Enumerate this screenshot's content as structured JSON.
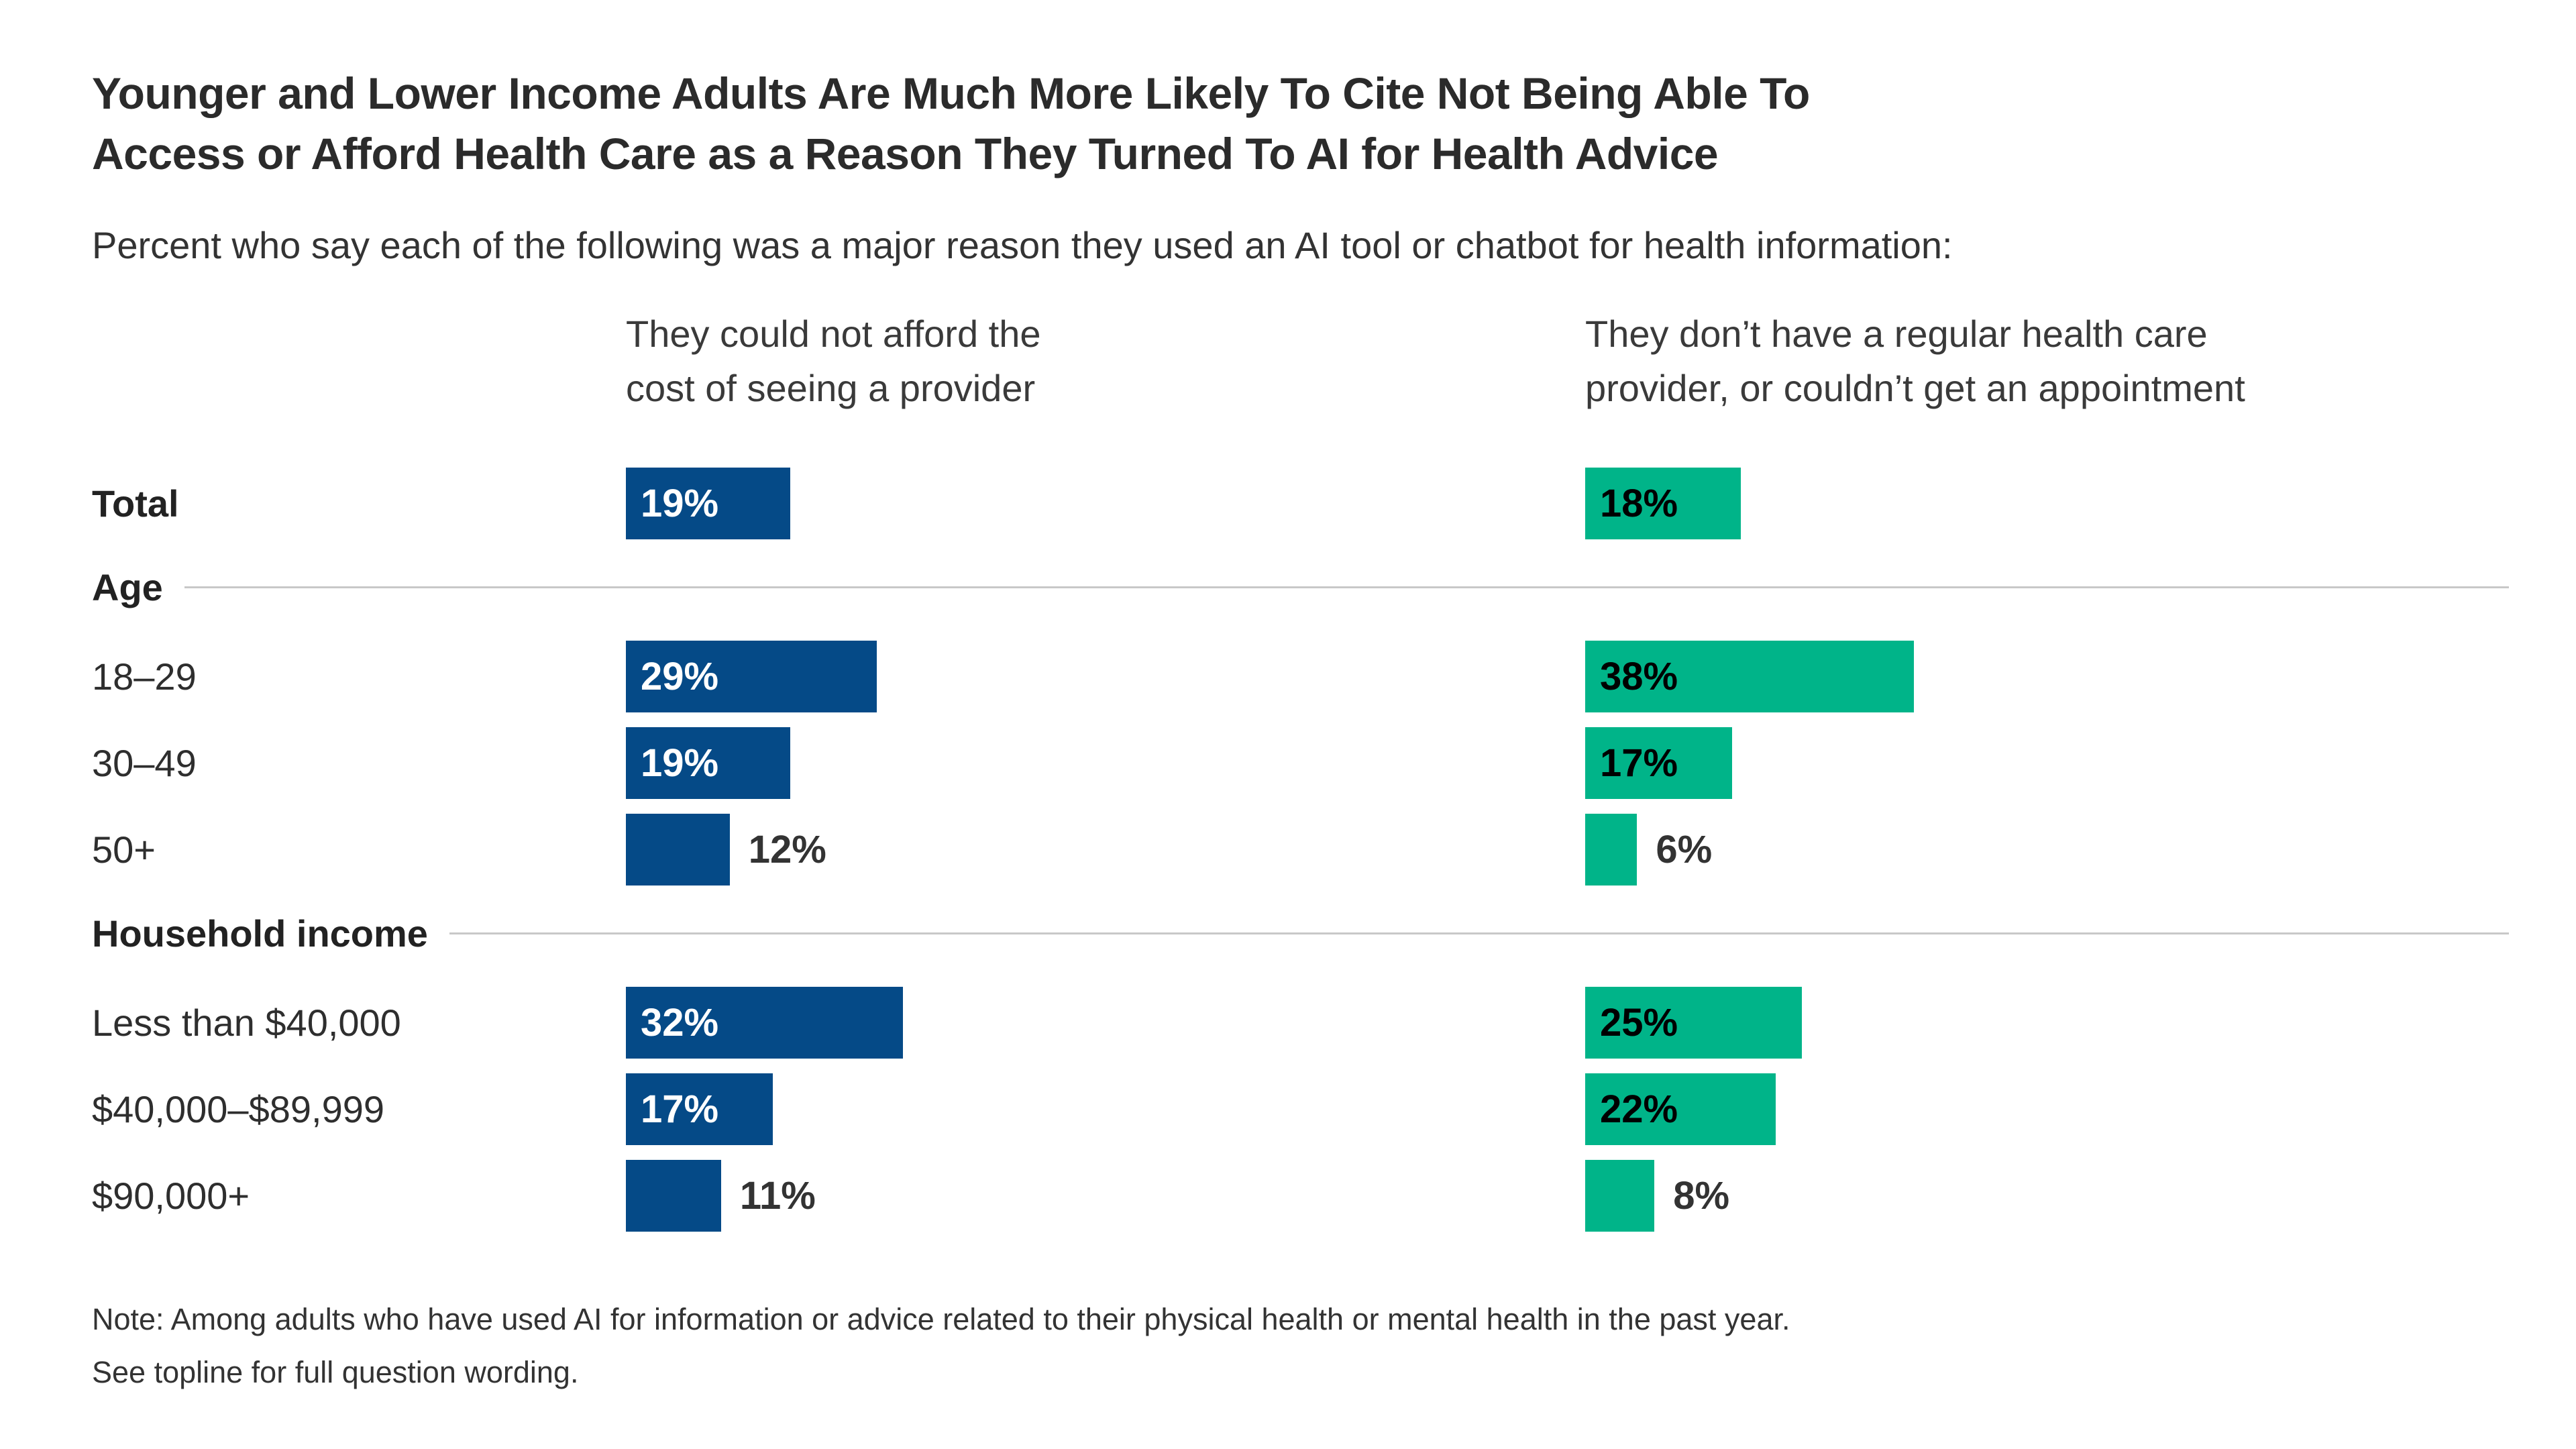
{
  "title_lines": [
    "Younger and Lower Income Adults Are Much More Likely To Cite Not Being Able To",
    "Access or Afford Health Care as a Reason They Turned To AI for Health Advice"
  ],
  "subtitle": "Percent who say each of the following was a major reason they used an AI tool or chatbot for health information:",
  "colors": {
    "blue": "#054a87",
    "green": "#00b489",
    "divider": "#c8c8c8",
    "text": "#333333"
  },
  "columns": [
    {
      "id": "afford",
      "header_lines": [
        "They could not afford the",
        "cost of seeing a provider"
      ],
      "color": "#054a87"
    },
    {
      "id": "provider",
      "header_lines": [
        "They don’t have a regular health care",
        "provider, or couldn’t get an appointment"
      ],
      "color": "#00b489"
    }
  ],
  "chart_data": {
    "type": "bar",
    "orientation": "horizontal",
    "unit": "percent",
    "title": "Younger and Lower Income Adults Are Much More Likely To Cite Not Being Able To Access or Afford Health Care as a Reason They Turned To AI for Health Advice",
    "subtitle": "Percent who say each of the following was a major reason they used an AI tool or chatbot for health information:",
    "group_headers": [
      "Total",
      "Age",
      "Household income"
    ],
    "categories": [
      "Total",
      "18–29",
      "30–49",
      "50+",
      "Less than $40,000",
      "$40,000–$89,999",
      "$90,000+"
    ],
    "series": [
      {
        "name": "They could not afford the cost of seeing a provider",
        "color": "#054a87",
        "values": [
          19,
          29,
          19,
          12,
          32,
          17,
          11
        ]
      },
      {
        "name": "They don’t have a regular health care provider, or couldn’t get an appointment",
        "color": "#00b489",
        "values": [
          18,
          38,
          17,
          6,
          25,
          22,
          8
        ]
      }
    ],
    "value_labels_shown": true,
    "xlim": [
      0,
      100
    ],
    "grid": false,
    "legend_position": "column-headers"
  },
  "rows": [
    {
      "type": "bar",
      "label": "Total",
      "bold": true,
      "left": {
        "value": 19,
        "display": "19%",
        "label_position": "inside"
      },
      "right": {
        "value": 18,
        "display": "18%",
        "label_position": "inside"
      }
    },
    {
      "type": "section",
      "label": "Age"
    },
    {
      "type": "bar",
      "label": "18–29",
      "left": {
        "value": 29,
        "display": "29%",
        "label_position": "inside"
      },
      "right": {
        "value": 38,
        "display": "38%",
        "label_position": "inside"
      }
    },
    {
      "type": "bar",
      "label": "30–49",
      "left": {
        "value": 19,
        "display": "19%",
        "label_position": "inside"
      },
      "right": {
        "value": 17,
        "display": "17%",
        "label_position": "inside"
      }
    },
    {
      "type": "bar",
      "label": "50+",
      "left": {
        "value": 12,
        "display": "12%",
        "label_position": "outside"
      },
      "right": {
        "value": 6,
        "display": "6%",
        "label_position": "outside"
      }
    },
    {
      "type": "section",
      "label": "Household income"
    },
    {
      "type": "bar",
      "label": "Less than $40,000",
      "left": {
        "value": 32,
        "display": "32%",
        "label_position": "inside"
      },
      "right": {
        "value": 25,
        "display": "25%",
        "label_position": "inside"
      }
    },
    {
      "type": "bar",
      "label": "$40,000–$89,999",
      "left": {
        "value": 17,
        "display": "17%",
        "label_position": "inside"
      },
      "right": {
        "value": 22,
        "display": "22%",
        "label_position": "inside"
      }
    },
    {
      "type": "bar",
      "label": "$90,000+",
      "left": {
        "value": 11,
        "display": "11%",
        "label_position": "outside"
      },
      "right": {
        "value": 8,
        "display": "8%",
        "label_position": "outside"
      }
    }
  ],
  "note_lines": [
    "Note: Among adults who have used AI for information or advice related to their physical health or mental health in the past year.",
    "See topline for full question wording."
  ]
}
